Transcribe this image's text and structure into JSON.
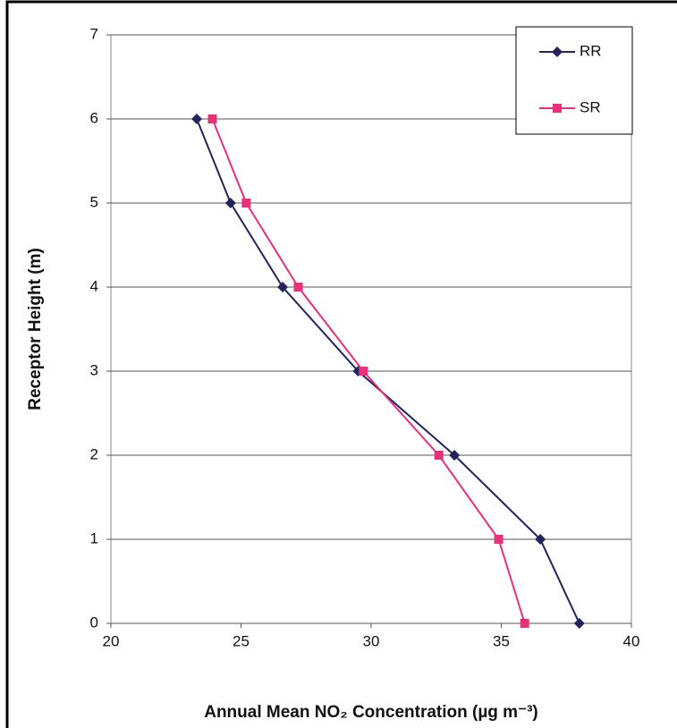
{
  "chart_data": {
    "type": "line",
    "xlabel": "Annual Mean NO₂ Concentration (µg m⁻³)",
    "ylabel": "Receptor Height (m)",
    "series": [
      {
        "name": "RR",
        "color": "#23235f",
        "marker": "diamond",
        "x": [
          38.0,
          36.5,
          33.2,
          29.5,
          26.6,
          24.6,
          23.3
        ],
        "values": [
          0,
          1,
          2,
          3,
          4,
          5,
          6
        ]
      },
      {
        "name": "SR",
        "color": "#e8317a",
        "marker": "square",
        "x": [
          35.9,
          34.9,
          32.6,
          29.7,
          27.2,
          25.2,
          23.9
        ],
        "values": [
          0,
          1,
          2,
          3,
          4,
          5,
          6
        ]
      }
    ],
    "xlim": [
      20,
      40
    ],
    "xticks": [
      20,
      25,
      30,
      35,
      40
    ],
    "ylim": [
      0,
      7
    ],
    "yticks": [
      0,
      1,
      2,
      3,
      4,
      5,
      6,
      7
    ],
    "grid": true,
    "legend": "upper right"
  }
}
